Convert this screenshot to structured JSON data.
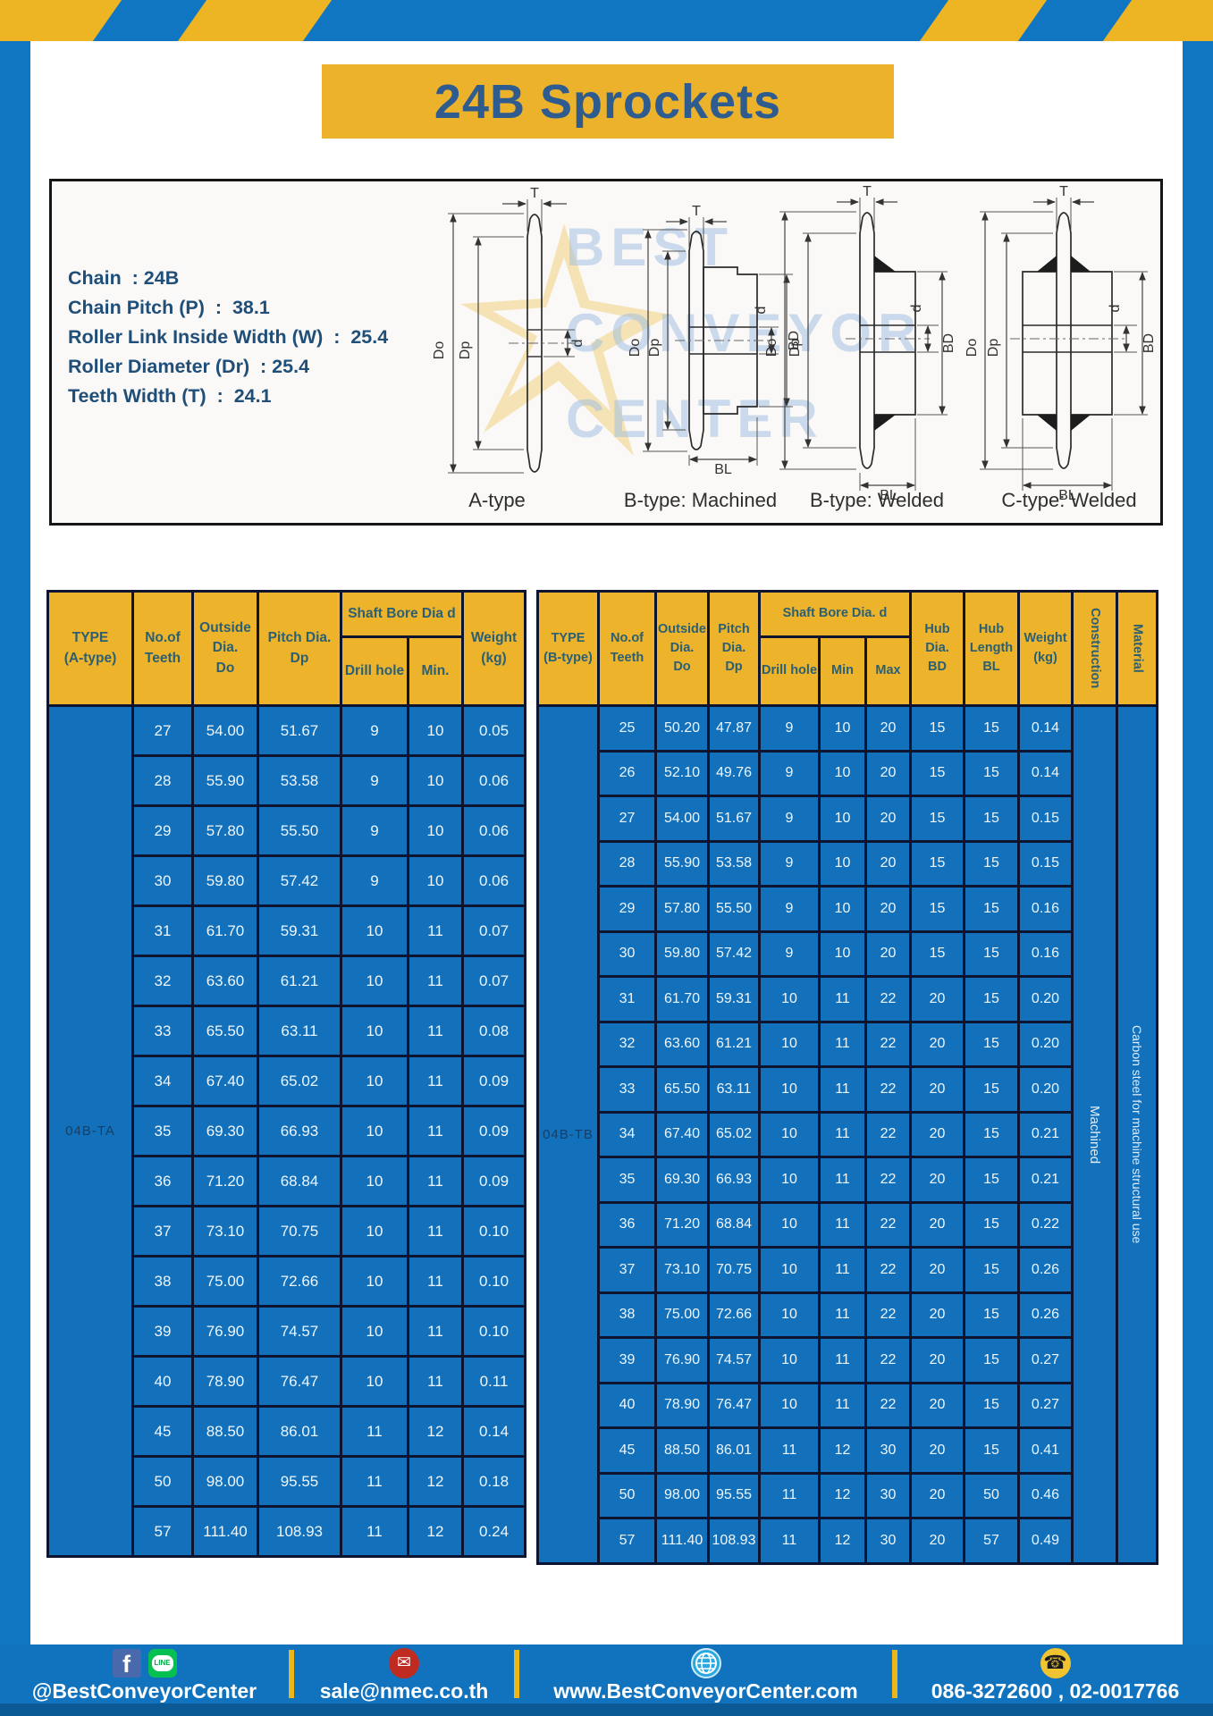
{
  "page": {
    "title": "24B Sprockets"
  },
  "specs": {
    "lines": [
      "Chain  : 24B",
      "Chain Pitch (P)  :  38.1",
      "Roller Link Inside Width (W)  :  25.4",
      "Roller Diameter (Dr)  : 25.4",
      "Teeth Width (T)  :  24.1"
    ]
  },
  "diagram": {
    "dims": {
      "t": "T",
      "do": "Do",
      "dp": "Dp",
      "d": "d",
      "bd": "BD",
      "bl": "BL"
    },
    "captions": [
      "A-type",
      "B-type: Machined",
      "B-type: Welded",
      "C-type: Welded"
    ]
  },
  "watermark": {
    "lines": [
      "BEST",
      "CONVEYOR",
      "CENTER"
    ]
  },
  "table_a": {
    "header": {
      "type": "TYPE\n(A-type)",
      "teeth": "No.of\nTeeth",
      "outside": "Outside\nDia.\nDo",
      "pitch": "Pitch Dia.\nDp",
      "shaft_bore": "Shaft Bore Dia d",
      "drill": "Drill hole",
      "min": "Min.",
      "weight": "Weight\n(kg)"
    },
    "type_code": "04B-TA",
    "rows": [
      [
        "27",
        "54.00",
        "51.67",
        "9",
        "10",
        "0.05"
      ],
      [
        "28",
        "55.90",
        "53.58",
        "9",
        "10",
        "0.06"
      ],
      [
        "29",
        "57.80",
        "55.50",
        "9",
        "10",
        "0.06"
      ],
      [
        "30",
        "59.80",
        "57.42",
        "9",
        "10",
        "0.06"
      ],
      [
        "31",
        "61.70",
        "59.31",
        "10",
        "11",
        "0.07"
      ],
      [
        "32",
        "63.60",
        "61.21",
        "10",
        "11",
        "0.07"
      ],
      [
        "33",
        "65.50",
        "63.11",
        "10",
        "11",
        "0.08"
      ],
      [
        "34",
        "67.40",
        "65.02",
        "10",
        "11",
        "0.09"
      ],
      [
        "35",
        "69.30",
        "66.93",
        "10",
        "11",
        "0.09"
      ],
      [
        "36",
        "71.20",
        "68.84",
        "10",
        "11",
        "0.09"
      ],
      [
        "37",
        "73.10",
        "70.75",
        "10",
        "11",
        "0.10"
      ],
      [
        "38",
        "75.00",
        "72.66",
        "10",
        "11",
        "0.10"
      ],
      [
        "39",
        "76.90",
        "74.57",
        "10",
        "11",
        "0.10"
      ],
      [
        "40",
        "78.90",
        "76.47",
        "10",
        "11",
        "0.11"
      ],
      [
        "45",
        "88.50",
        "86.01",
        "11",
        "12",
        "0.14"
      ],
      [
        "50",
        "98.00",
        "95.55",
        "11",
        "12",
        "0.18"
      ],
      [
        "57",
        "111.40",
        "108.93",
        "11",
        "12",
        "0.24"
      ]
    ]
  },
  "table_b": {
    "header": {
      "type": "TYPE\n(B-type)",
      "teeth": "No.of\nTeeth",
      "outside": "Outside\nDia.\nDo",
      "pitch": "Pitch\nDia.\nDp",
      "shaft_bore": "Shaft Bore Dia. d",
      "drill": "Drill hole",
      "min": "Min",
      "max": "Max",
      "hub_dia": "Hub\nDia.\nBD",
      "hub_length": "Hub\nLength\nBL",
      "weight": "Weight\n(kg)",
      "construction": "Construction",
      "material": "Material"
    },
    "type_code": "04B-TB",
    "construction": "Machined",
    "material": "Carbon steel for machine structural use",
    "rows": [
      [
        "25",
        "50.20",
        "47.87",
        "9",
        "10",
        "20",
        "15",
        "15",
        "0.14"
      ],
      [
        "26",
        "52.10",
        "49.76",
        "9",
        "10",
        "20",
        "15",
        "15",
        "0.14"
      ],
      [
        "27",
        "54.00",
        "51.67",
        "9",
        "10",
        "20",
        "15",
        "15",
        "0.15"
      ],
      [
        "28",
        "55.90",
        "53.58",
        "9",
        "10",
        "20",
        "15",
        "15",
        "0.15"
      ],
      [
        "29",
        "57.80",
        "55.50",
        "9",
        "10",
        "20",
        "15",
        "15",
        "0.16"
      ],
      [
        "30",
        "59.80",
        "57.42",
        "9",
        "10",
        "20",
        "15",
        "15",
        "0.16"
      ],
      [
        "31",
        "61.70",
        "59.31",
        "10",
        "11",
        "22",
        "20",
        "15",
        "0.20"
      ],
      [
        "32",
        "63.60",
        "61.21",
        "10",
        "11",
        "22",
        "20",
        "15",
        "0.20"
      ],
      [
        "33",
        "65.50",
        "63.11",
        "10",
        "11",
        "22",
        "20",
        "15",
        "0.20"
      ],
      [
        "34",
        "67.40",
        "65.02",
        "10",
        "11",
        "22",
        "20",
        "15",
        "0.21"
      ],
      [
        "35",
        "69.30",
        "66.93",
        "10",
        "11",
        "22",
        "20",
        "15",
        "0.21"
      ],
      [
        "36",
        "71.20",
        "68.84",
        "10",
        "11",
        "22",
        "20",
        "15",
        "0.22"
      ],
      [
        "37",
        "73.10",
        "70.75",
        "10",
        "11",
        "22",
        "20",
        "15",
        "0.26"
      ],
      [
        "38",
        "75.00",
        "72.66",
        "10",
        "11",
        "22",
        "20",
        "15",
        "0.26"
      ],
      [
        "39",
        "76.90",
        "74.57",
        "10",
        "11",
        "22",
        "20",
        "15",
        "0.27"
      ],
      [
        "40",
        "78.90",
        "76.47",
        "10",
        "11",
        "22",
        "20",
        "15",
        "0.27"
      ],
      [
        "45",
        "88.50",
        "86.01",
        "11",
        "12",
        "30",
        "20",
        "15",
        "0.41"
      ],
      [
        "50",
        "98.00",
        "95.55",
        "11",
        "12",
        "30",
        "20",
        "50",
        "0.46"
      ],
      [
        "57",
        "111.40",
        "108.93",
        "11",
        "12",
        "30",
        "20",
        "57",
        "0.49"
      ]
    ]
  },
  "footer": {
    "social_handle": "@BestConveyorCenter",
    "line_label": "LINE",
    "fb_label": "f",
    "email": "sale@nmec.co.th",
    "email_icon": "✉",
    "website": "www.BestConveyorCenter.com",
    "phones": "086-3272600 , 02-0017766",
    "phone_icon": "☎"
  },
  "colors": {
    "frame_blue": "#1176c2",
    "cell_blue": "#1371bc",
    "accent_yellow": "#edb32a",
    "grid_line": "#0d1430",
    "header_text": "#2b5f74",
    "title_text": "#2e5c8e"
  }
}
